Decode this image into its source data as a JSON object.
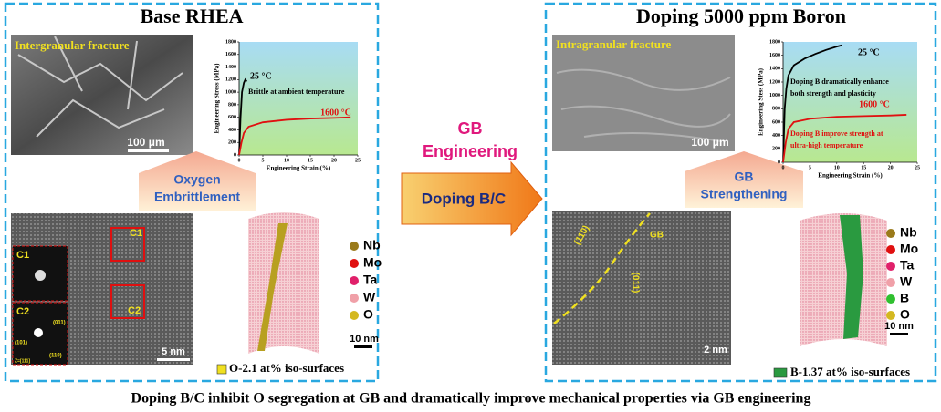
{
  "left_panel": {
    "title": "Base RHEA",
    "sem_label": "Intergranular fracture",
    "sem_scale": "100 μm",
    "callout": [
      "Oxygen",
      "Embrittlement"
    ],
    "tem_labels": [
      "C1",
      "C2",
      "C1",
      "C2",
      "(011)",
      "(101)",
      "(110)",
      "Z=[111]"
    ],
    "tem_scale": "5 nm",
    "apt_scale": "10 nm",
    "legend": [
      {
        "label": "Nb",
        "color": "#9a7a1a"
      },
      {
        "label": "Mo",
        "color": "#e01010"
      },
      {
        "label": "Ta",
        "color": "#e0206a"
      },
      {
        "label": "W",
        "color": "#f0a0a8"
      },
      {
        "label": "O",
        "color": "#d4b820"
      }
    ],
    "iso_label": "O-2.1 at% iso-surfaces",
    "iso_color": "#f0e020"
  },
  "right_panel": {
    "title": "Doping 5000 ppm Boron",
    "sem_label": "Intragranular fracture",
    "sem_scale": "100 μm",
    "callout": [
      "GB",
      "Strengthening"
    ],
    "tem_labels": [
      "(110)",
      "GB",
      "(011)"
    ],
    "tem_scale": "2 nm",
    "apt_scale": "10 nm",
    "legend": [
      {
        "label": "Nb",
        "color": "#9a7a1a"
      },
      {
        "label": "Mo",
        "color": "#e01010"
      },
      {
        "label": "Ta",
        "color": "#e0206a"
      },
      {
        "label": "W",
        "color": "#f0a0a8"
      },
      {
        "label": "B",
        "color": "#30c030"
      },
      {
        "label": "O",
        "color": "#d4b820"
      }
    ],
    "iso_label": "B-1.37 at% iso-surfaces",
    "iso_color": "#2a9a40"
  },
  "center": {
    "label": [
      "GB",
      "Engineering"
    ],
    "arrow_label": "Doping B/C"
  },
  "caption": "Doping B/C inhibit O segregation at GB and dramatically improve mechanical properties via GB engineering",
  "chart_data": [
    {
      "type": "line",
      "xlabel": "Engineering Strain (%)",
      "ylabel": "Engineering Stress (MPa)",
      "xlim": [
        0,
        25
      ],
      "xticks": [
        0,
        5,
        10,
        15,
        20,
        25
      ],
      "ylim": [
        0,
        1800
      ],
      "yticks": [
        0,
        200,
        400,
        600,
        800,
        1000,
        1200,
        1400,
        1600,
        1800
      ],
      "series": [
        {
          "name": "25 °C",
          "color": "#000000",
          "x": [
            0,
            0.3,
            0.6,
            1,
            1.3,
            1.6
          ],
          "values": [
            0,
            600,
            1000,
            1150,
            1200,
            1170
          ]
        },
        {
          "name": "1600 °C",
          "color": "#e01010",
          "x": [
            0,
            0.5,
            1,
            2,
            5,
            10,
            15,
            20,
            23.5
          ],
          "values": [
            0,
            200,
            350,
            450,
            520,
            560,
            580,
            590,
            600
          ]
        }
      ],
      "annotations": [
        {
          "text": "Brittle at ambient temperature",
          "color": "#000000"
        }
      ]
    },
    {
      "type": "line",
      "xlabel": "Engineering Strain (%)",
      "ylabel": "Engineering Stess (MPa)",
      "xlim": [
        0,
        25
      ],
      "xticks": [
        0,
        5,
        10,
        15,
        20,
        25
      ],
      "ylim": [
        0,
        1800
      ],
      "yticks": [
        0,
        200,
        400,
        600,
        800,
        1000,
        1200,
        1400,
        1600,
        1800
      ],
      "series": [
        {
          "name": "25 °C",
          "color": "#000000",
          "x": [
            0,
            0.3,
            0.6,
            1,
            2,
            4,
            6,
            8,
            10,
            11
          ],
          "values": [
            0,
            800,
            1100,
            1300,
            1450,
            1550,
            1620,
            1680,
            1730,
            1750
          ]
        },
        {
          "name": "1600 °C",
          "color": "#e01010",
          "x": [
            0,
            0.5,
            1,
            2,
            5,
            10,
            15,
            20,
            23
          ],
          "values": [
            0,
            300,
            500,
            600,
            650,
            680,
            690,
            700,
            710
          ]
        }
      ],
      "annotations": [
        {
          "text": "Doping B dramatically enhance",
          "color": "#000000"
        },
        {
          "text": "both strength and plasticity",
          "color": "#000000"
        },
        {
          "text": "Doping B improve strength at",
          "color": "#e01010"
        },
        {
          "text": "ultra-high temperature",
          "color": "#e01010"
        }
      ]
    }
  ]
}
